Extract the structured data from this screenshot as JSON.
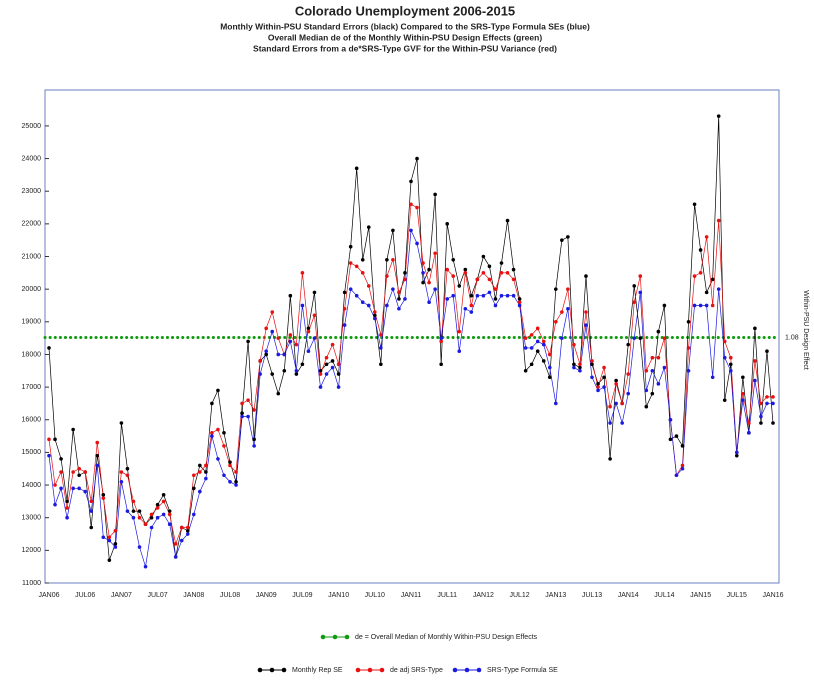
{
  "chart_data": {
    "type": "line",
    "title": "Colorado Unemployment 2006-2015",
    "subtitles": [
      "Monthly Within-PSU Standard Errors (black) Compared to the SRS-Type Formula SEs (blue)",
      "Overall Median de of the Monthly Within-PSU Design Effects (green)",
      "Standard Errors from a de*SRS-Type GVF for the Within-PSU Variance (red)"
    ],
    "y2_label": "Within-PSU Design Effect",
    "categories": [
      "JAN06",
      null,
      null,
      null,
      null,
      null,
      "JUL06",
      null,
      null,
      null,
      null,
      null,
      "JAN07",
      null,
      null,
      null,
      null,
      null,
      "JUL07",
      null,
      null,
      null,
      null,
      null,
      "JAN08",
      null,
      null,
      null,
      null,
      null,
      "JUL08",
      null,
      null,
      null,
      null,
      null,
      "JAN09",
      null,
      null,
      null,
      null,
      null,
      "JUL09",
      null,
      null,
      null,
      null,
      null,
      "JAN10",
      null,
      null,
      null,
      null,
      null,
      "JUL10",
      null,
      null,
      null,
      null,
      null,
      "JAN11",
      null,
      null,
      null,
      null,
      null,
      "JUL11",
      null,
      null,
      null,
      null,
      null,
      "JAN12",
      null,
      null,
      null,
      null,
      null,
      "JUL12",
      null,
      null,
      null,
      null,
      null,
      "JAN13",
      null,
      null,
      null,
      null,
      null,
      "JUL13",
      null,
      null,
      null,
      null,
      null,
      "JAN14",
      null,
      null,
      null,
      null,
      null,
      "JUL14",
      null,
      null,
      null,
      null,
      null,
      "JAN15",
      null,
      null,
      null,
      null,
      null,
      "JUL15",
      null,
      null,
      null,
      null,
      null,
      "JAN16"
    ],
    "ylim": [
      11000,
      26100
    ],
    "yticks": [
      11000,
      12000,
      13000,
      14000,
      15000,
      16000,
      17000,
      18000,
      19000,
      20000,
      21000,
      22000,
      23000,
      24000,
      25000
    ],
    "reference_line": {
      "name": "de = Overall Median of Monthly Within-PSU Design Effects",
      "value": 18520,
      "label": "1.08",
      "color": "#109a10"
    },
    "series": [
      {
        "name": "Monthly Rep SE",
        "color": "#000000",
        "values": [
          18200,
          15400,
          14800,
          13500,
          15700,
          14300,
          14400,
          12700,
          14900,
          13700,
          11700,
          12200,
          15900,
          14500,
          13200,
          13200,
          12800,
          13000,
          13400,
          13700,
          13200,
          11800,
          12700,
          12600,
          13900,
          14600,
          14400,
          16500,
          16900,
          15600,
          14700,
          14100,
          16200,
          18400,
          15400,
          17800,
          18000,
          17400,
          16800,
          17500,
          19800,
          17400,
          17700,
          18800,
          19900,
          17500,
          17700,
          17800,
          17400,
          19900,
          21300,
          23700,
          20900,
          21900,
          19200,
          17700,
          20900,
          21800,
          19700,
          20500,
          23300,
          24000,
          20200,
          20600,
          22900,
          17700,
          22000,
          20900,
          20100,
          20600,
          19800,
          20300,
          21000,
          20700,
          19700,
          20800,
          22100,
          20600,
          19700,
          17500,
          17700,
          18100,
          17800,
          17300,
          20000,
          21500,
          21600,
          17700,
          17600,
          20400,
          17700,
          17100,
          17300,
          14800,
          17200,
          16500,
          18300,
          20100,
          18500,
          16400,
          16800,
          18700,
          19500,
          15400,
          15500,
          15200,
          19000,
          22600,
          21200,
          19900,
          20300,
          25300,
          16600,
          17700,
          14900,
          17300,
          15600,
          18800,
          15900,
          18100,
          15900
        ]
      },
      {
        "name": "de adj SRS-Type",
        "color": "#e81010",
        "values": [
          15400,
          14000,
          14400,
          13300,
          14400,
          14500,
          14400,
          13500,
          15300,
          13600,
          12400,
          12600,
          14400,
          14300,
          13500,
          13000,
          12800,
          13100,
          13300,
          13500,
          13100,
          12200,
          12700,
          12700,
          14300,
          14400,
          14600,
          15600,
          15700,
          15200,
          14600,
          14400,
          16500,
          16600,
          16300,
          17800,
          18800,
          19300,
          18500,
          18000,
          18600,
          18300,
          20500,
          18700,
          19200,
          17400,
          17900,
          18300,
          17700,
          19400,
          20800,
          20700,
          20500,
          20100,
          19300,
          18600,
          20400,
          20900,
          19900,
          20300,
          22600,
          22500,
          20800,
          20200,
          21100,
          18400,
          20600,
          20400,
          18700,
          20500,
          19500,
          20300,
          20500,
          20300,
          20000,
          20500,
          20500,
          20300,
          19600,
          18500,
          18600,
          18800,
          18400,
          18000,
          19000,
          19300,
          20000,
          18300,
          17700,
          19300,
          17800,
          17000,
          17600,
          16400,
          17100,
          16500,
          17400,
          19600,
          20400,
          17500,
          17900,
          17900,
          18500,
          16000,
          14300,
          14600,
          18200,
          20400,
          20500,
          21600,
          19500,
          22100,
          18400,
          17900,
          15000,
          16800,
          15900,
          17800,
          16500,
          16700,
          16700
        ]
      },
      {
        "name": "SRS-Type Formula SE",
        "color": "#1a1ae0",
        "values": [
          14900,
          13400,
          13900,
          13000,
          13900,
          13900,
          13800,
          13200,
          14600,
          12400,
          12300,
          12100,
          14100,
          13200,
          13000,
          12100,
          11500,
          12700,
          13000,
          13100,
          12800,
          11800,
          12300,
          12500,
          13100,
          13800,
          14200,
          15500,
          14800,
          14300,
          14100,
          14000,
          16100,
          16100,
          15200,
          17400,
          18100,
          18700,
          18000,
          18000,
          18400,
          17500,
          19500,
          18100,
          18500,
          17000,
          17400,
          17600,
          17000,
          18900,
          20000,
          19800,
          19600,
          19500,
          19100,
          18200,
          19500,
          20000,
          19400,
          19700,
          21800,
          21400,
          20500,
          19600,
          20000,
          18500,
          19700,
          19800,
          18100,
          19400,
          19300,
          19800,
          19800,
          19900,
          19500,
          19800,
          19800,
          19800,
          19500,
          18200,
          18200,
          18400,
          18300,
          17600,
          16500,
          18500,
          19400,
          17600,
          17500,
          18900,
          17300,
          16900,
          17000,
          15900,
          16500,
          15900,
          16800,
          18500,
          19900,
          16900,
          17500,
          17100,
          17600,
          16000,
          14300,
          14500,
          17500,
          19500,
          19500,
          19500,
          17300,
          20000,
          17900,
          17500,
          15000,
          16600,
          15600,
          17200,
          16100,
          16500,
          16500
        ]
      }
    ],
    "plot_border_color": "#6b7fc4"
  }
}
